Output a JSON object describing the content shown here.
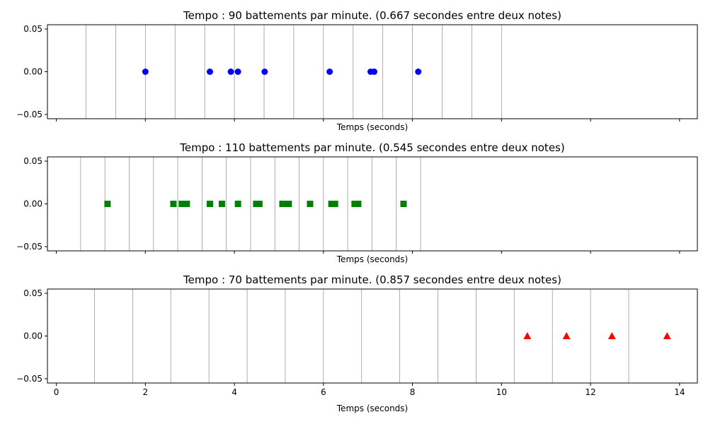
{
  "chart_data": [
    {
      "type": "scatter",
      "title": "Tempo : 90 battements par minute. (0.667 secondes entre deux notes)",
      "xlabel": "Temps (seconds)",
      "ylabel": "",
      "xlim": [
        -0.2,
        14.4
      ],
      "ylim": [
        -0.055,
        0.055
      ],
      "x_ticks": [
        0,
        2,
        4,
        6,
        8,
        10,
        12,
        14
      ],
      "x_tick_labels_visible": false,
      "y_ticks": [
        0.05,
        0.0,
        -0.05
      ],
      "y_tick_labels": [
        "0.05",
        "0.00",
        "−0.05"
      ],
      "beat_lines": [
        0.667,
        1.333,
        2.0,
        2.667,
        3.333,
        4.0,
        4.667,
        5.333,
        6.0,
        6.667,
        7.333,
        8.0,
        8.667,
        9.333,
        10.0
      ],
      "beat_line_color": "#999999",
      "marker": "circle",
      "color": "#0000ff",
      "x": [
        2.0,
        3.45,
        3.92,
        4.08,
        4.68,
        6.14,
        7.06,
        7.14,
        8.13
      ],
      "y": [
        0,
        0,
        0,
        0,
        0,
        0,
        0,
        0,
        0
      ]
    },
    {
      "type": "scatter",
      "title": "Tempo : 110 battements par minute. (0.545 secondes entre deux notes)",
      "xlabel": "Temps (seconds)",
      "ylabel": "",
      "xlim": [
        -0.2,
        14.4
      ],
      "ylim": [
        -0.055,
        0.055
      ],
      "x_ticks": [
        0,
        2,
        4,
        6,
        8,
        10,
        12,
        14
      ],
      "x_tick_labels_visible": false,
      "y_ticks": [
        0.05,
        0.0,
        -0.05
      ],
      "y_tick_labels": [
        "0.05",
        "0.00",
        "−0.05"
      ],
      "beat_lines": [
        0.545,
        1.091,
        1.636,
        2.182,
        2.727,
        3.273,
        3.818,
        4.364,
        4.909,
        5.455,
        6.0,
        6.545,
        7.091,
        7.636,
        8.182
      ],
      "beat_line_color": "#999999",
      "marker": "square",
      "color": "#008000",
      "x": [
        1.15,
        2.63,
        2.82,
        2.93,
        3.45,
        3.72,
        4.08,
        4.49,
        4.56,
        5.08,
        5.22,
        5.7,
        6.18,
        6.26,
        6.7,
        6.78,
        7.8
      ],
      "y": [
        0,
        0,
        0,
        0,
        0,
        0,
        0,
        0,
        0,
        0,
        0,
        0,
        0,
        0,
        0,
        0,
        0
      ]
    },
    {
      "type": "scatter",
      "title": "Tempo : 70 battements par minute. (0.857 secondes entre deux notes)",
      "xlabel": "Temps (seconds)",
      "ylabel": "",
      "xlim": [
        -0.2,
        14.4
      ],
      "ylim": [
        -0.055,
        0.055
      ],
      "x_ticks": [
        0,
        2,
        4,
        6,
        8,
        10,
        12,
        14
      ],
      "x_tick_labels": [
        "0",
        "2",
        "4",
        "6",
        "8",
        "10",
        "12",
        "14"
      ],
      "x_tick_labels_visible": true,
      "y_ticks": [
        0.05,
        0.0,
        -0.05
      ],
      "y_tick_labels": [
        "0.05",
        "0.00",
        "−0.05"
      ],
      "beat_lines": [
        0.857,
        1.714,
        2.571,
        3.429,
        4.286,
        5.143,
        6.0,
        6.857,
        7.714,
        8.571,
        9.429,
        10.286,
        11.143,
        12.0,
        12.857
      ],
      "beat_line_color": "#999999",
      "marker": "triangle",
      "color": "#ff0000",
      "x": [
        10.58,
        11.46,
        12.48,
        13.72
      ],
      "y": [
        0,
        0,
        0,
        0
      ]
    }
  ]
}
